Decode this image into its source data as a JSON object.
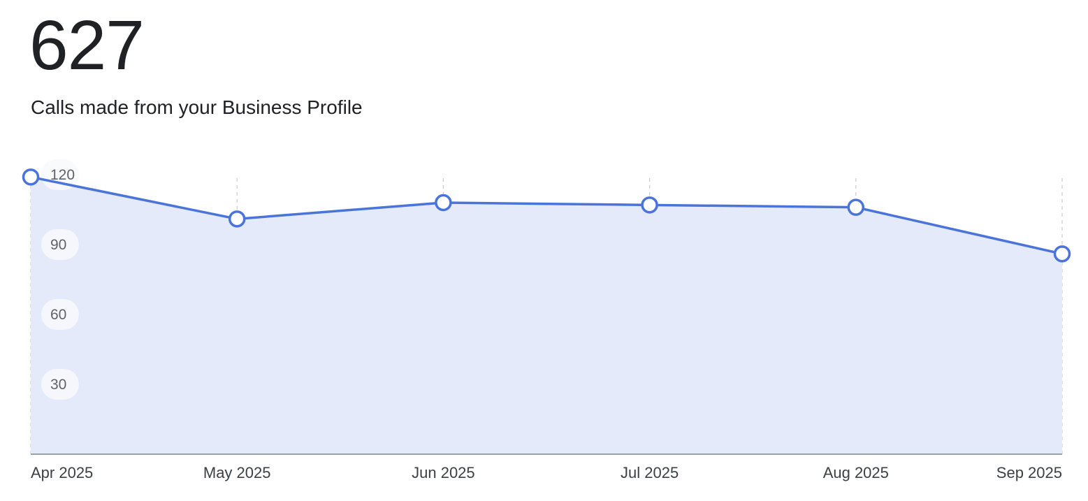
{
  "header": {
    "total": "627",
    "subtitle": "Calls made from your Business Profile"
  },
  "colors": {
    "line": "#4a74d9",
    "area": "#e5eafa",
    "grid": "#c8cad0",
    "axis": "#80868b",
    "text": "#202124"
  },
  "chart_data": {
    "type": "area",
    "title": "",
    "xlabel": "",
    "ylabel": "",
    "categories": [
      "Apr 2025",
      "May 2025",
      "Jun 2025",
      "Jul 2025",
      "Aug 2025",
      "Sep 2025"
    ],
    "series": [
      {
        "values": [
          119,
          101,
          108,
          107,
          106,
          86
        ]
      }
    ],
    "ylim": [
      0,
      120
    ],
    "yticks": [
      30,
      60,
      90,
      120
    ],
    "grid": "vertical dashed",
    "markers": "hollow circles",
    "legend": "none"
  }
}
